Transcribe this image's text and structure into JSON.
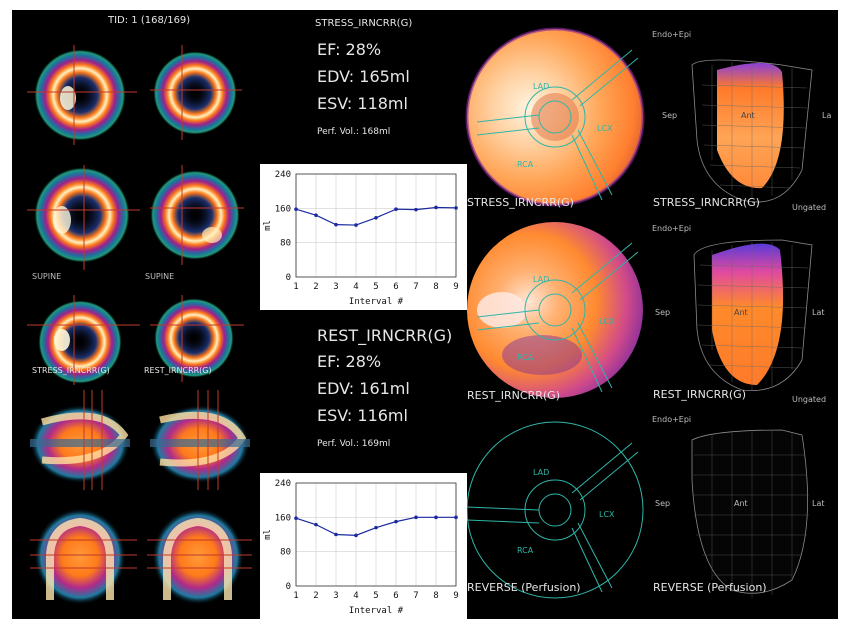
{
  "header": {
    "tid": "TID: 1 (168/169)"
  },
  "stress": {
    "title": "STRESS_IRNCRR(G)",
    "ef": "EF: 28%",
    "edv": "EDV: 165ml",
    "esv": "ESV: 118ml",
    "perf_vol": "Perf. Vol.: 168ml"
  },
  "rest": {
    "title": "REST_IRNCRR(G)",
    "ef": "EF: 28%",
    "edv": "EDV: 161ml",
    "esv": "ESV: 116ml",
    "perf_vol": "Perf. Vol.: 169ml"
  },
  "slice_labels": {
    "supine_left": "SUPINE",
    "supine_right": "SUPINE",
    "stress": "STRESS_IRNCRR(G)",
    "rest": "REST_IRNCRR(G)"
  },
  "polar_maps": {
    "stress_label": "STRESS_IRNCRR(G)",
    "rest_label": "REST_IRNCRR(G)",
    "reverse_label": "REVERSE (Perfusion)",
    "territories": {
      "lad": "LAD",
      "lcx": "LCX",
      "rca": "RCA"
    }
  },
  "surface_views": {
    "endo_epi": "Endo+Epi",
    "sep": "Sep",
    "ant": "Ant",
    "lat": "Lat",
    "lat_cut": "La",
    "stress_label": "STRESS_IRNCRR(G)",
    "rest_label": "REST_IRNCRR(G)",
    "reverse_label": "REVERSE (Perfusion)",
    "ungated": "Ungated"
  },
  "colors": {
    "background": "#000000",
    "curve": "#1a2aa0",
    "grid": "#9a9a9a",
    "territory_lines": "#2fb6a8"
  },
  "chart_data": [
    {
      "type": "line",
      "x": [
        1,
        2,
        3,
        4,
        5,
        6,
        7,
        8,
        9
      ],
      "values": [
        158,
        144,
        122,
        121,
        138,
        158,
        157,
        162,
        161
      ],
      "xlabel": "Interval #",
      "ylabel": "ml",
      "ylim": [
        0,
        240
      ],
      "yticks": [
        0,
        80,
        160,
        240
      ],
      "ytick_labels": [
        "0",
        "80",
        "160",
        "240"
      ],
      "xtick_labels": [
        "1",
        "2",
        "3",
        "4",
        "5",
        "6",
        "7",
        "8",
        "9"
      ]
    },
    {
      "type": "line",
      "x": [
        1,
        2,
        3,
        4,
        5,
        6,
        7,
        8,
        9
      ],
      "values": [
        158,
        143,
        120,
        118,
        136,
        150,
        160,
        160,
        160
      ],
      "xlabel": "Interval #",
      "ylabel": "ml",
      "ylim": [
        0,
        240
      ],
      "yticks": [
        0,
        80,
        160,
        240
      ],
      "ytick_labels": [
        "0",
        "80",
        "160",
        "240"
      ],
      "xtick_labels": [
        "1",
        "2",
        "3",
        "4",
        "5",
        "6",
        "7",
        "8",
        "9"
      ]
    }
  ]
}
